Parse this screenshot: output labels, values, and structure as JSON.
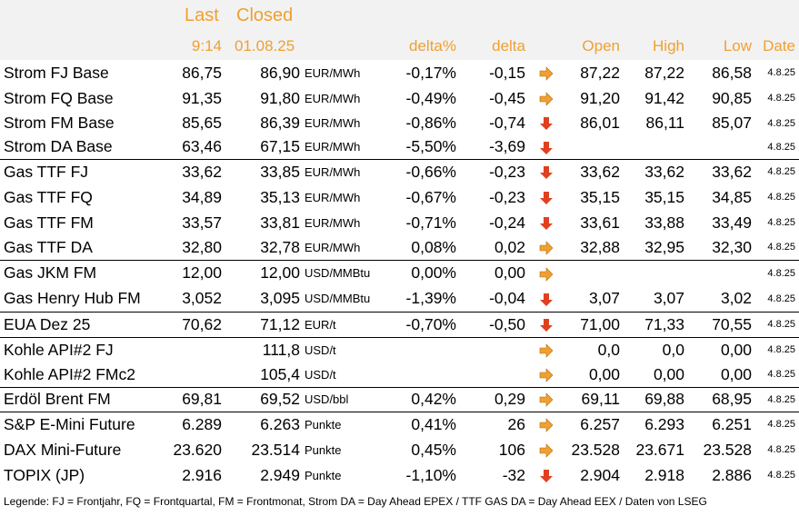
{
  "header": {
    "last_label": "Last",
    "closed_label": "Closed",
    "last_time": "9:14",
    "closed_date": "01.08.25",
    "delta_pct_label": "delta%",
    "delta_label": "delta",
    "open_label": "Open",
    "high_label": "High",
    "low_label": "Low",
    "date_label": "Date"
  },
  "colors": {
    "header_text": "#f0a030",
    "arrow_orange": "#f0a030",
    "arrow_red": "#e04020"
  },
  "rows": [
    {
      "name": "Strom FJ Base",
      "last": "86,75",
      "closed": "86,90",
      "unit": "EUR/MWh",
      "delta_pct": "-0,17%",
      "delta": "-0,15",
      "arrow": "right",
      "open": "87,22",
      "high": "87,22",
      "low": "86,58",
      "date": "4.8.25",
      "group_start": false
    },
    {
      "name": "Strom FQ Base",
      "last": "91,35",
      "closed": "91,80",
      "unit": "EUR/MWh",
      "delta_pct": "-0,49%",
      "delta": "-0,45",
      "arrow": "right",
      "open": "91,20",
      "high": "91,42",
      "low": "90,85",
      "date": "4.8.25",
      "group_start": false
    },
    {
      "name": "Strom FM Base",
      "last": "85,65",
      "closed": "86,39",
      "unit": "EUR/MWh",
      "delta_pct": "-0,86%",
      "delta": "-0,74",
      "arrow": "down",
      "open": "86,01",
      "high": "86,11",
      "low": "85,07",
      "date": "4.8.25",
      "group_start": false
    },
    {
      "name": "Strom DA Base",
      "last": "63,46",
      "closed": "67,15",
      "unit": "EUR/MWh",
      "delta_pct": "-5,50%",
      "delta": "-3,69",
      "arrow": "down",
      "open": "",
      "high": "",
      "low": "",
      "date": "4.8.25",
      "group_start": false
    },
    {
      "name": "Gas TTF FJ",
      "last": "33,62",
      "closed": "33,85",
      "unit": "EUR/MWh",
      "delta_pct": "-0,66%",
      "delta": "-0,23",
      "arrow": "down",
      "open": "33,62",
      "high": "33,62",
      "low": "33,62",
      "date": "4.8.25",
      "group_start": true
    },
    {
      "name": "Gas TTF FQ",
      "last": "34,89",
      "closed": "35,13",
      "unit": "EUR/MWh",
      "delta_pct": "-0,67%",
      "delta": "-0,23",
      "arrow": "down",
      "open": "35,15",
      "high": "35,15",
      "low": "34,85",
      "date": "4.8.25",
      "group_start": false
    },
    {
      "name": "Gas TTF FM",
      "last": "33,57",
      "closed": "33,81",
      "unit": "EUR/MWh",
      "delta_pct": "-0,71%",
      "delta": "-0,24",
      "arrow": "down",
      "open": "33,61",
      "high": "33,88",
      "low": "33,49",
      "date": "4.8.25",
      "group_start": false
    },
    {
      "name": "Gas TTF DA",
      "last": "32,80",
      "closed": "32,78",
      "unit": "EUR/MWh",
      "delta_pct": "0,08%",
      "delta": "0,02",
      "arrow": "right",
      "open": "32,88",
      "high": "32,95",
      "low": "32,30",
      "date": "4.8.25",
      "group_start": false
    },
    {
      "name": "Gas JKM FM",
      "last": "12,00",
      "closed": "12,00",
      "unit": "USD/MMBtu",
      "delta_pct": "0,00%",
      "delta": "0,00",
      "arrow": "right",
      "open": "",
      "high": "",
      "low": "",
      "date": "4.8.25",
      "group_start": true
    },
    {
      "name": "Gas Henry Hub FM",
      "last": "3,052",
      "closed": "3,095",
      "unit": "USD/MMBtu",
      "delta_pct": "-1,39%",
      "delta": "-0,04",
      "arrow": "down",
      "open": "3,07",
      "high": "3,07",
      "low": "3,02",
      "date": "4.8.25",
      "group_start": false
    },
    {
      "name": "EUA Dez 25",
      "last": "70,62",
      "closed": "71,12",
      "unit": "EUR/t",
      "delta_pct": "-0,70%",
      "delta": "-0,50",
      "arrow": "down",
      "open": "71,00",
      "high": "71,33",
      "low": "70,55",
      "date": "4.8.25",
      "group_start": true
    },
    {
      "name": "Kohle API#2 FJ",
      "last": "",
      "closed": "111,8",
      "unit": "USD/t",
      "delta_pct": "",
      "delta": "",
      "arrow": "right",
      "open": "0,0",
      "high": "0,0",
      "low": "0,00",
      "date": "4.8.25",
      "group_start": true
    },
    {
      "name": "Kohle API#2 FMc2",
      "last": "",
      "closed": "105,4",
      "unit": "USD/t",
      "delta_pct": "",
      "delta": "",
      "arrow": "right",
      "open": "0,00",
      "high": "0,00",
      "low": "0,00",
      "date": "4.8.25",
      "group_start": false
    },
    {
      "name": "Erdöl Brent FM",
      "last": "69,81",
      "closed": "69,52",
      "unit": "USD/bbl",
      "delta_pct": "0,42%",
      "delta": "0,29",
      "arrow": "right",
      "open": "69,11",
      "high": "69,88",
      "low": "68,95",
      "date": "4.8.25",
      "group_start": true
    },
    {
      "name": "S&P E-Mini Future",
      "last": "6.289",
      "closed": "6.263",
      "unit": "Punkte",
      "delta_pct": "0,41%",
      "delta": "26",
      "arrow": "right",
      "open": "6.257",
      "high": "6.293",
      "low": "6.251",
      "date": "4.8.25",
      "group_start": true
    },
    {
      "name": "DAX Mini-Future",
      "last": "23.620",
      "closed": "23.514",
      "unit": "Punkte",
      "delta_pct": "0,45%",
      "delta": "106",
      "arrow": "right",
      "open": "23.528",
      "high": "23.671",
      "low": "23.528",
      "date": "4.8.25",
      "group_start": false
    },
    {
      "name": "TOPIX (JP)",
      "last": "2.916",
      "closed": "2.949",
      "unit": "Punkte",
      "delta_pct": "-1,10%",
      "delta": "-32",
      "arrow": "down",
      "open": "2.904",
      "high": "2.918",
      "low": "2.886",
      "date": "4.8.25",
      "group_start": false
    }
  ],
  "legend": "Legende: FJ = Frontjahr, FQ = Frontquartal, FM = Frontmonat, Strom DA = Day Ahead EPEX / TTF GAS DA = Day Ahead EEX / Daten von LSEG"
}
